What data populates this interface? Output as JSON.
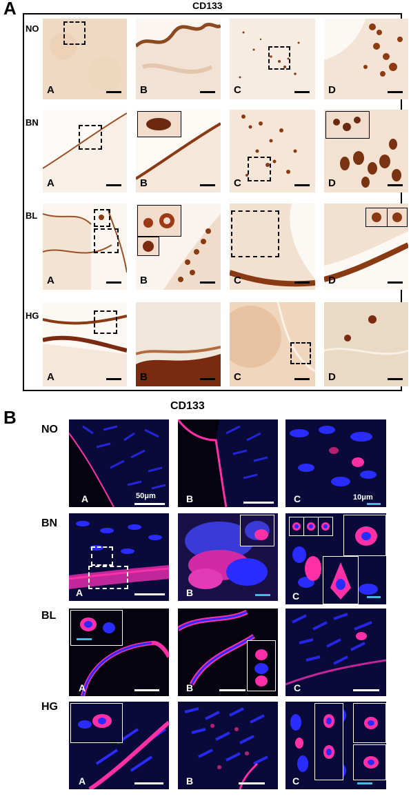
{
  "figure": {
    "panel_a": {
      "letter": "A",
      "title": "CD133"
    },
    "panel_b": {
      "letter": "B",
      "title": "CD133"
    },
    "rows": [
      "NO",
      "BN",
      "BL",
      "HG"
    ],
    "sub_labels": [
      "A",
      "B",
      "C",
      "D"
    ],
    "scale_labels": {
      "large": "50μm",
      "small": "10μm"
    },
    "colors": {
      "ihc_background": "#f6e9dc",
      "ihc_stain": "#8a3a12",
      "fluor_background": "#05030f",
      "nuclei": "#2a2cff",
      "cd133": "#ff2fa8",
      "small_scale_bar": "#48b6e6"
    }
  }
}
